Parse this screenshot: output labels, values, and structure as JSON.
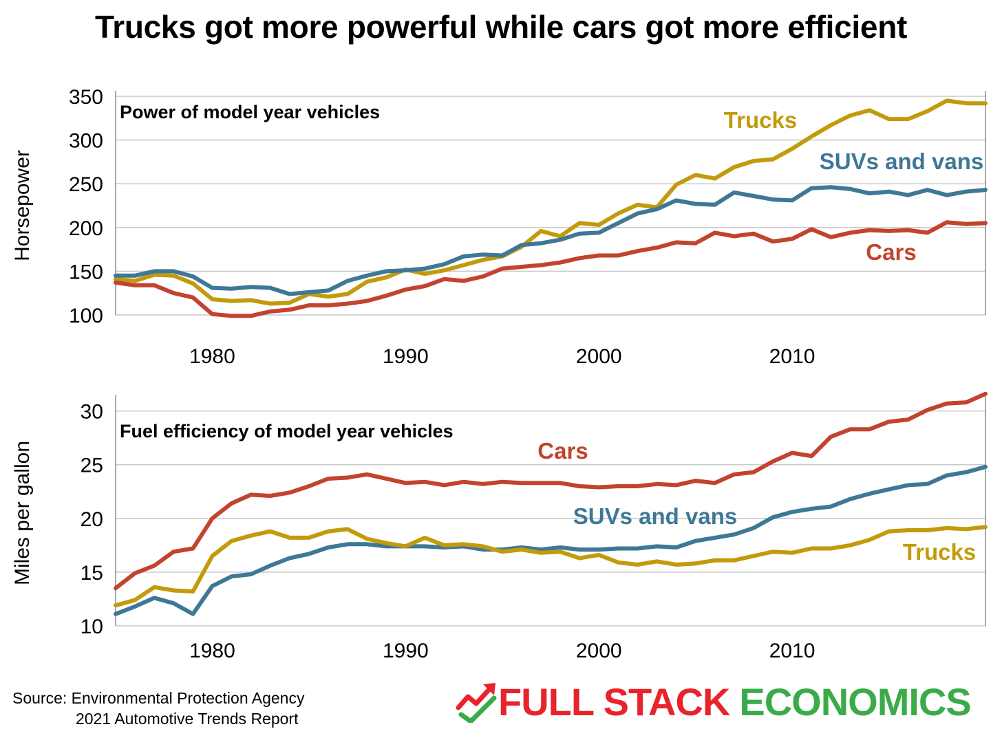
{
  "title": "Trucks got more powerful while cars got more efficient",
  "colors": {
    "trucks": "#c29b0c",
    "suvs": "#3f7896",
    "cars": "#c2432e",
    "logo_red": "#e8232c",
    "logo_green": "#3aab48"
  },
  "chart_data": [
    {
      "type": "line",
      "subtitle": "Power of model year vehicles",
      "ylabel": "Horsepower",
      "ylim": [
        100,
        350
      ],
      "yticks": [
        "100",
        "150",
        "200",
        "250",
        "300",
        "350"
      ],
      "xlim": [
        1975,
        2020
      ],
      "xticks": [
        "1980",
        "1990",
        "2000",
        "2010"
      ],
      "grid": "horizontal",
      "x": [
        1975,
        1976,
        1977,
        1978,
        1979,
        1980,
        1981,
        1982,
        1983,
        1984,
        1985,
        1986,
        1987,
        1988,
        1989,
        1990,
        1991,
        1992,
        1993,
        1994,
        1995,
        1996,
        1997,
        1998,
        1999,
        2000,
        2001,
        2002,
        2003,
        2004,
        2005,
        2006,
        2007,
        2008,
        2009,
        2010,
        2011,
        2012,
        2013,
        2014,
        2015,
        2016,
        2017,
        2018,
        2019,
        2020
      ],
      "series": [
        {
          "name": "Trucks",
          "key": "trucks",
          "label_pos": "above",
          "values": [
            141,
            139,
            146,
            145,
            136,
            118,
            116,
            117,
            113,
            114,
            124,
            121,
            124,
            138,
            143,
            152,
            147,
            151,
            157,
            163,
            167,
            178,
            196,
            190,
            205,
            203,
            216,
            226,
            223,
            249,
            260,
            256,
            269,
            276,
            278,
            290,
            304,
            317,
            328,
            334,
            324,
            324,
            333,
            345,
            342,
            342
          ]
        },
        {
          "name": "SUVs and vans",
          "key": "suvs",
          "label_pos": "above",
          "values": [
            145,
            145,
            150,
            150,
            144,
            131,
            130,
            132,
            131,
            124,
            126,
            128,
            139,
            145,
            150,
            151,
            153,
            158,
            167,
            169,
            168,
            180,
            182,
            186,
            193,
            194,
            205,
            216,
            221,
            231,
            227,
            226,
            240,
            236,
            232,
            231,
            245,
            246,
            244,
            239,
            241,
            237,
            243,
            237,
            241,
            243
          ]
        },
        {
          "name": "Cars",
          "key": "cars",
          "label_pos": "below",
          "values": [
            137,
            134,
            134,
            125,
            120,
            101,
            99,
            99,
            104,
            106,
            111,
            111,
            113,
            116,
            122,
            129,
            133,
            141,
            139,
            144,
            153,
            155,
            157,
            160,
            165,
            168,
            168,
            173,
            177,
            183,
            182,
            194,
            190,
            193,
            184,
            187,
            198,
            189,
            194,
            197,
            196,
            197,
            194,
            206,
            204,
            205
          ]
        }
      ]
    },
    {
      "type": "line",
      "subtitle": "Fuel efficiency of model year vehicles",
      "ylabel": "Miles per gallon",
      "ylim": [
        10,
        31
      ],
      "yticks": [
        "10",
        "15",
        "20",
        "25",
        "30"
      ],
      "xlim": [
        1975,
        2020
      ],
      "xticks": [
        "1980",
        "1990",
        "2000",
        "2010"
      ],
      "grid": "horizontal",
      "x": [
        1975,
        1976,
        1977,
        1978,
        1979,
        1980,
        1981,
        1982,
        1983,
        1984,
        1985,
        1986,
        1987,
        1988,
        1989,
        1990,
        1991,
        1992,
        1993,
        1994,
        1995,
        1996,
        1997,
        1998,
        1999,
        2000,
        2001,
        2002,
        2003,
        2004,
        2005,
        2006,
        2007,
        2008,
        2009,
        2010,
        2011,
        2012,
        2013,
        2014,
        2015,
        2016,
        2017,
        2018,
        2019,
        2020
      ],
      "series": [
        {
          "name": "Cars",
          "key": "cars",
          "label_pos": "above",
          "values": [
            13.5,
            14.9,
            15.6,
            16.9,
            17.2,
            20.0,
            21.4,
            22.2,
            22.1,
            22.4,
            23.0,
            23.7,
            23.8,
            24.1,
            23.7,
            23.3,
            23.4,
            23.1,
            23.4,
            23.2,
            23.4,
            23.3,
            23.3,
            23.3,
            23.0,
            22.9,
            23.0,
            23.0,
            23.2,
            23.1,
            23.5,
            23.3,
            24.1,
            24.3,
            25.3,
            26.1,
            25.8,
            27.6,
            28.3,
            28.3,
            29.0,
            29.2,
            30.1,
            30.7,
            30.8,
            31.6
          ]
        },
        {
          "name": "SUVs and vans",
          "key": "suvs",
          "label_pos": "above",
          "values": [
            11.1,
            11.8,
            12.6,
            12.1,
            11.1,
            13.7,
            14.6,
            14.8,
            15.6,
            16.3,
            16.7,
            17.3,
            17.6,
            17.6,
            17.4,
            17.4,
            17.4,
            17.3,
            17.4,
            17.1,
            17.1,
            17.3,
            17.1,
            17.3,
            17.1,
            17.1,
            17.2,
            17.2,
            17.4,
            17.3,
            17.9,
            18.2,
            18.5,
            19.1,
            20.1,
            20.6,
            20.9,
            21.1,
            21.8,
            22.3,
            22.7,
            23.1,
            23.2,
            24.0,
            24.3,
            24.8
          ]
        },
        {
          "name": "Trucks",
          "key": "trucks",
          "label_pos": "below",
          "values": [
            11.9,
            12.4,
            13.6,
            13.3,
            13.2,
            16.5,
            17.9,
            18.4,
            18.8,
            18.2,
            18.2,
            18.8,
            19.0,
            18.1,
            17.7,
            17.4,
            18.2,
            17.5,
            17.6,
            17.4,
            16.9,
            17.1,
            16.8,
            16.9,
            16.3,
            16.6,
            15.9,
            15.7,
            16.0,
            15.7,
            15.8,
            16.1,
            16.1,
            16.5,
            16.9,
            16.8,
            17.2,
            17.2,
            17.5,
            18.0,
            18.8,
            18.9,
            18.9,
            19.1,
            19.0,
            19.2
          ]
        }
      ]
    }
  ],
  "source": {
    "line1": "Source: Environmental Protection Agency",
    "line2": "2021 Automotive Trends Report"
  },
  "logo": {
    "word1": "FULL STACK",
    "word2": "ECONOMICS"
  }
}
